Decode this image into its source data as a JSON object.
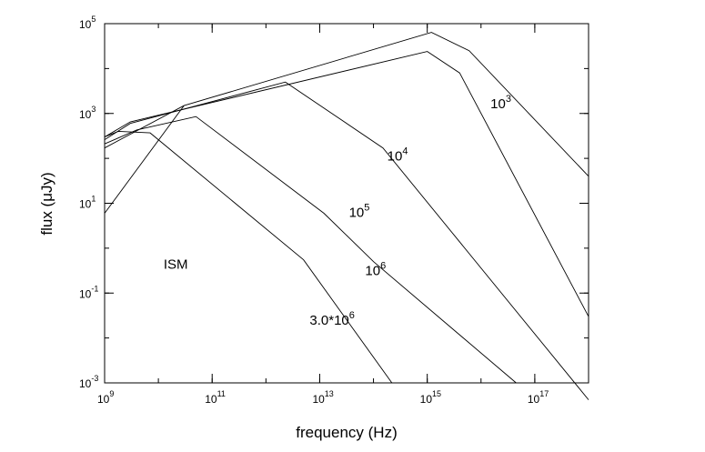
{
  "chart_data": {
    "type": "line",
    "title": "",
    "xlabel": "frequency (Hz)",
    "ylabel": "flux (μJy)",
    "x_scale": "log",
    "y_scale": "log",
    "xlim": [
      1000000000.0,
      1e+18
    ],
    "ylim": [
      0.001,
      100000
    ],
    "grid": false,
    "x_ticks": [
      {
        "base": "10",
        "exp": "9",
        "value": 1000000000.0
      },
      {
        "base": "10",
        "exp": "11",
        "value": 100000000000.0
      },
      {
        "base": "10",
        "exp": "13",
        "value": 10000000000000.0
      },
      {
        "base": "10",
        "exp": "15",
        "value": 1000000000000000.0
      },
      {
        "base": "10",
        "exp": "17",
        "value": 1e+17
      }
    ],
    "y_ticks": [
      {
        "base": "10",
        "exp": "-3",
        "value": 0.001
      },
      {
        "base": "10",
        "exp": "-1",
        "value": 0.1
      },
      {
        "base": "10",
        "exp": "1",
        "value": 10
      },
      {
        "base": "10",
        "exp": "3",
        "value": 1000
      },
      {
        "base": "10",
        "exp": "5",
        "value": 100000
      }
    ],
    "series": [
      {
        "key": "1e3",
        "label_base": "10",
        "label_exp": "3",
        "label_at": [
          1.5e+16,
          1300
        ],
        "points": [
          [
            1000000000.0,
            170
          ],
          [
            30000000000.0,
            1500
          ],
          [
            1200000000000000.0,
            64000
          ],
          [
            6000000000000000.0,
            25000
          ],
          [
            1e+18,
            40
          ]
        ]
      },
      {
        "key": "1e4",
        "label_base": "10",
        "label_exp": "4",
        "label_at": [
          180000000000000.0,
          90
        ],
        "points": [
          [
            1000000000.0,
            300
          ],
          [
            3000000000.0,
            650
          ],
          [
            1000000000000000.0,
            24000
          ],
          [
            4000000000000000.0,
            8000
          ],
          [
            1e+18,
            0.03
          ]
        ]
      },
      {
        "key": "1e5",
        "label_base": "10",
        "label_exp": "5",
        "label_at": [
          35000000000000.0,
          5
        ],
        "points": [
          [
            1000000000.0,
            260
          ],
          [
            3000000000.0,
            600
          ],
          [
            2300000000000.0,
            5000
          ],
          [
            150000000000000.0,
            170
          ],
          [
            1e+18,
            0.00042
          ]
        ]
      },
      {
        "key": "1e6",
        "label_base": "10",
        "label_exp": "6",
        "label_at": [
          70000000000000.0,
          0.25
        ],
        "points": [
          [
            1000000000.0,
            210
          ],
          [
            4000000000.0,
            430
          ],
          [
            50000000000.0,
            850
          ],
          [
            12000000000000.0,
            6
          ],
          [
            100000000000000.0,
            0.5
          ],
          [
            4.5e+16,
            0.001
          ]
        ]
      },
      {
        "key": "3e6",
        "label_base": "3.0*10",
        "label_exp": "6",
        "label_at": [
          6500000000000.0,
          0.02
        ],
        "points": [
          [
            1000000000.0,
            300
          ],
          [
            1800000000.0,
            400
          ],
          [
            7000000000.0,
            370
          ],
          [
            5000000000000.0,
            0.55
          ],
          [
            220000000000000.0,
            0.001
          ]
        ]
      },
      {
        "key": "ISM",
        "label_base": "ISM",
        "label_exp": "",
        "label_at": [
          12500000000.0,
          0.35
        ],
        "points": [
          [
            1000000000.0,
            6
          ],
          [
            30000000000.0,
            1500
          ]
        ]
      }
    ]
  }
}
